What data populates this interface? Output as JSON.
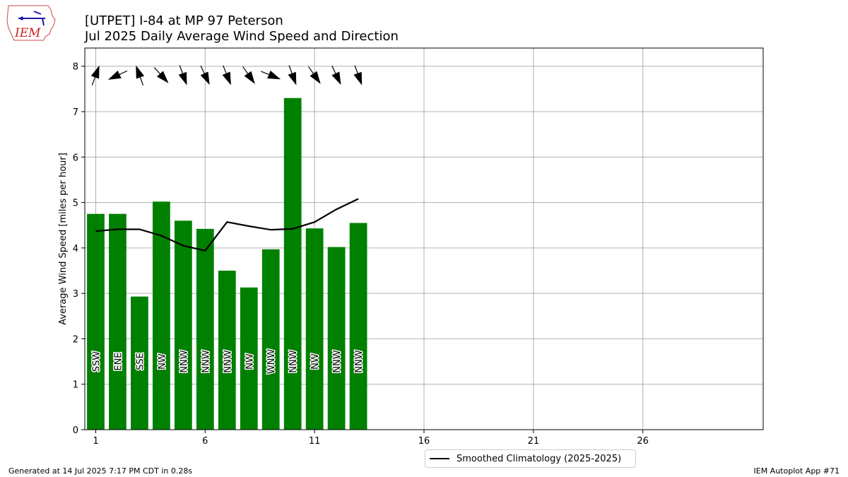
{
  "header": {
    "title_line1": "[UTPET] I-84 at MP 97 Peterson",
    "title_line2": "Jul 2025 Daily Average Wind Speed and Direction"
  },
  "logo": {
    "text": "IEM",
    "icon": "iowa-state-outline-logo"
  },
  "footer": {
    "left": "Generated at 14 Jul 2025 7:17 PM CDT in 0.28s",
    "right": "IEM Autoplot App #71"
  },
  "legend": {
    "label": "Smoothed Climatology (2025-2025)"
  },
  "colors": {
    "bar": "#008000",
    "line": "#000000",
    "grid": "#b0b0b0"
  },
  "chart_data": {
    "type": "bar",
    "title": "[UTPET] I-84 at MP 97 Peterson\nJul 2025 Daily Average Wind Speed and Direction",
    "ylabel": "Average Wind Speed [miles per hour]",
    "xlabel": "",
    "ylim": [
      0,
      8.4
    ],
    "xlim": [
      0.5,
      31.5
    ],
    "xticks": [
      1,
      6,
      11,
      16,
      21,
      26
    ],
    "yticks": [
      0,
      1,
      2,
      3,
      4,
      5,
      6,
      7,
      8
    ],
    "grid": true,
    "legend_position": "bottom-center",
    "days": [
      1,
      2,
      3,
      4,
      5,
      6,
      7,
      8,
      9,
      10,
      11,
      12,
      13
    ],
    "values": [
      4.75,
      4.75,
      2.93,
      5.02,
      4.6,
      4.42,
      3.5,
      3.13,
      3.97,
      7.3,
      4.43,
      4.02,
      4.55
    ],
    "direction_labels": [
      "SSW",
      "ENE",
      "SSE",
      "NW",
      "NNW",
      "NNW",
      "NNW",
      "NW",
      "WNW",
      "NNW",
      "NW",
      "NNW",
      "NNW"
    ],
    "direction_degrees": [
      200,
      65,
      160,
      318,
      340,
      335,
      338,
      325,
      292,
      340,
      325,
      335,
      340
    ],
    "series": [
      {
        "name": "Smoothed Climatology (2025-2025)",
        "type": "line",
        "x": [
          1,
          2,
          3,
          4,
          5,
          6,
          7,
          8,
          9,
          10,
          11,
          12,
          13
        ],
        "values": [
          4.37,
          4.41,
          4.41,
          4.27,
          4.05,
          3.94,
          4.57,
          4.48,
          4.4,
          4.42,
          4.57,
          4.85,
          5.08
        ]
      }
    ]
  }
}
